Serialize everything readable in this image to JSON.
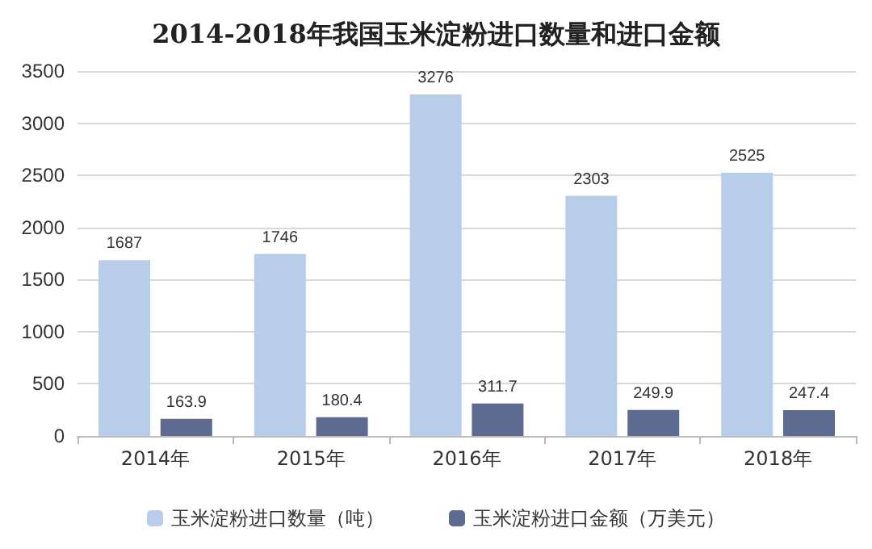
{
  "chart_data": {
    "type": "bar",
    "title": "2014-2018年我国玉米淀粉进口数量和进口金额",
    "categories": [
      "2014年",
      "2015年",
      "2016年",
      "2017年",
      "2018年"
    ],
    "series": [
      {
        "name": "玉米淀粉进口数量（吨）",
        "color": "#b7cde9",
        "values": [
          1687,
          1746,
          3276,
          2303,
          2525
        ]
      },
      {
        "name": "玉米淀粉进口金额（万美元）",
        "color": "#5e6b91",
        "values": [
          163.9,
          180.4,
          311.7,
          249.9,
          247.4
        ]
      }
    ],
    "ylim": [
      0,
      3500
    ],
    "yticks": [
      0,
      500,
      1000,
      1500,
      2000,
      2500,
      3000,
      3500
    ],
    "grid": "y",
    "legend": "bottom",
    "data_labels": true
  }
}
